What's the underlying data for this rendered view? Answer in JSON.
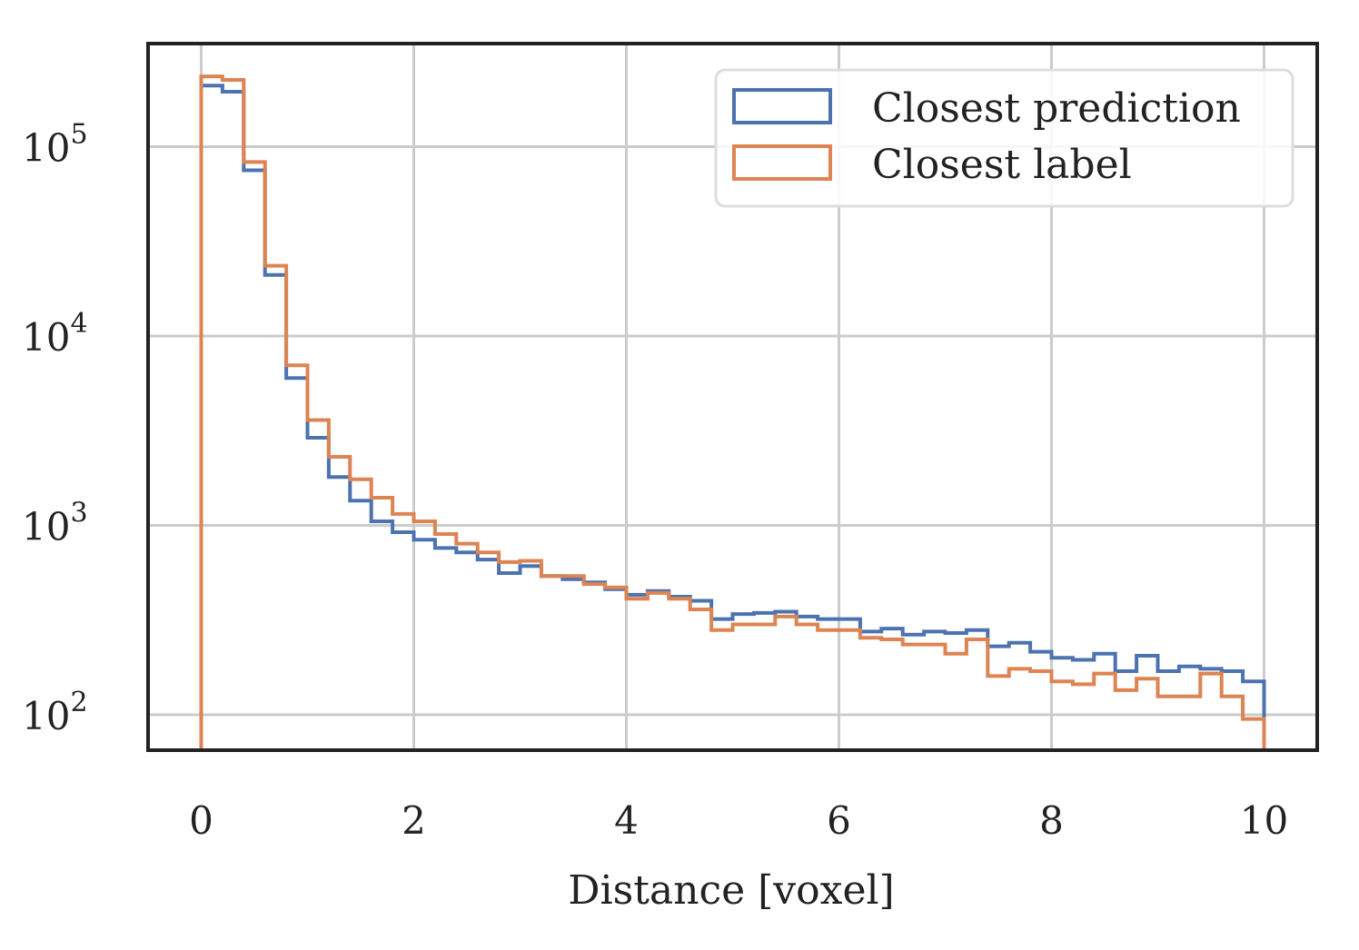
{
  "chart_data": {
    "type": "histogram",
    "xlabel": "Distance [voxel]",
    "ylabel": "",
    "xlim": [
      -0.5,
      10.5
    ],
    "ylim": [
      65,
      350000
    ],
    "yscale": "log",
    "grid": true,
    "legend_position": "top-right",
    "x_ticks": [
      0,
      2,
      4,
      6,
      8,
      10
    ],
    "x_tick_labels": [
      "0",
      "2",
      "4",
      "6",
      "8",
      "10"
    ],
    "y_ticks": [
      100,
      1000,
      10000,
      100000
    ],
    "y_tick_labels": [
      {
        "base": "10",
        "exp": "2"
      },
      {
        "base": "10",
        "exp": "3"
      },
      {
        "base": "10",
        "exp": "4"
      },
      {
        "base": "10",
        "exp": "5"
      }
    ],
    "bin_edges": [
      0,
      0.2,
      0.4,
      0.6,
      0.8,
      1.0,
      1.2,
      1.4,
      1.6,
      1.8,
      2.0,
      2.2,
      2.4,
      2.6,
      2.8,
      3.0,
      3.2,
      3.4,
      3.6,
      3.8,
      4.0,
      4.2,
      4.4,
      4.6,
      4.8,
      5.0,
      5.2,
      5.4,
      5.6,
      5.8,
      6.0,
      6.2,
      6.4,
      6.6,
      6.8,
      7.0,
      7.2,
      7.4,
      7.6,
      7.8,
      8.0,
      8.2,
      8.4,
      8.6,
      8.8,
      9.0,
      9.2,
      9.4,
      9.6,
      9.8,
      10.0
    ],
    "series": [
      {
        "name": "Closest prediction",
        "color": "#4c72b0",
        "values": [
          210000,
          195000,
          75000,
          21000,
          6000,
          2900,
          1800,
          1350,
          1050,
          920,
          840,
          760,
          720,
          660,
          560,
          610,
          540,
          520,
          500,
          460,
          430,
          450,
          420,
          400,
          320,
          340,
          345,
          350,
          330,
          320,
          320,
          275,
          285,
          265,
          275,
          270,
          280,
          230,
          240,
          215,
          200,
          195,
          210,
          170,
          205,
          170,
          180,
          175,
          170,
          150
        ]
      },
      {
        "name": "Closest label",
        "color": "#dd8452",
        "values": [
          235000,
          225000,
          83000,
          23500,
          7000,
          3600,
          2300,
          1750,
          1400,
          1150,
          1050,
          900,
          800,
          720,
          640,
          650,
          540,
          540,
          490,
          470,
          410,
          440,
          410,
          360,
          280,
          300,
          300,
          330,
          300,
          280,
          280,
          255,
          250,
          235,
          235,
          210,
          250,
          160,
          175,
          170,
          150,
          145,
          165,
          135,
          155,
          125,
          125,
          165,
          125,
          95
        ]
      }
    ]
  }
}
